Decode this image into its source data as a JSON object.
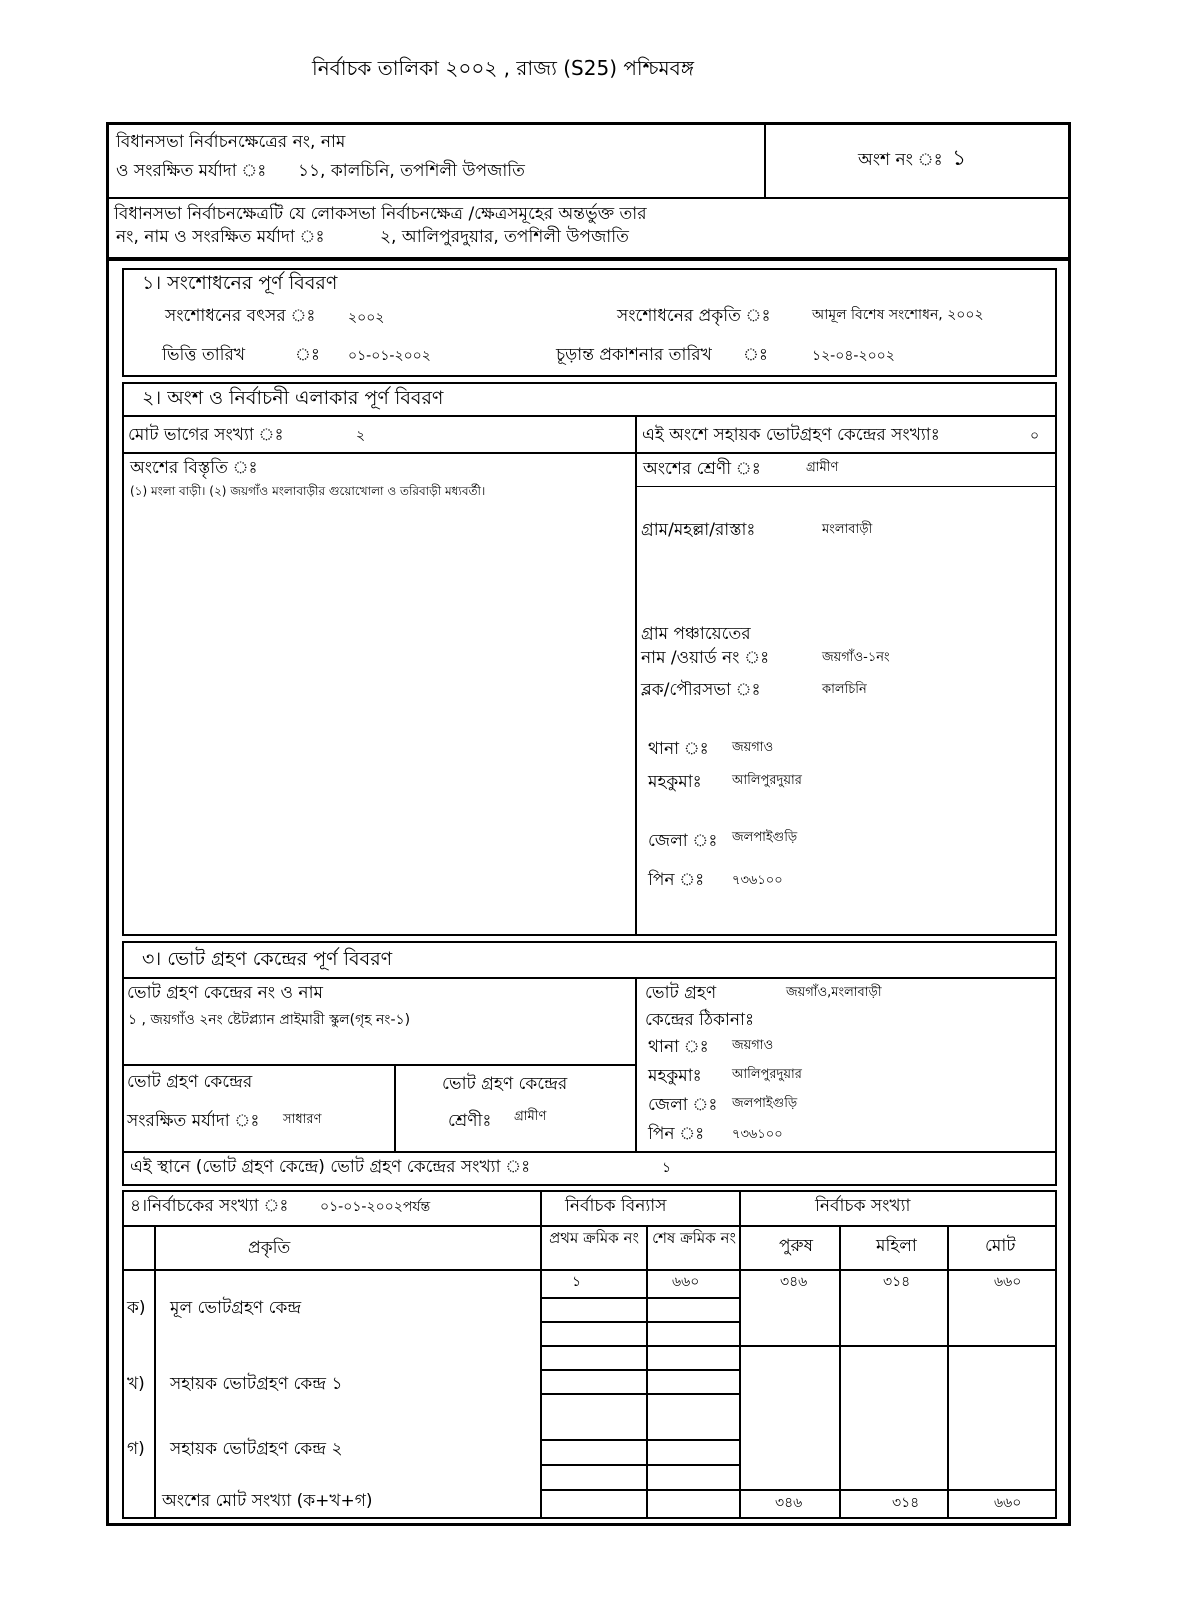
{
  "title": "নির্বাচক তালিকা   ২০০২ , রাজ্য (S25) পশ্চিমবঙ্গ",
  "header": {
    "assembly_label_1": "বিধানসভা নির্বাচনক্ষেত্রের নং, নাম",
    "assembly_label_2": "ও সংরক্ষিত মর্যাদা ঃ",
    "assembly_value": "১১, কালচিনি, তপশিলী উপজাতি",
    "part_label": "অংশ নং ঃ",
    "part_value": "১",
    "parliament_label_1": "বিধানসভা নির্বাচনক্ষেত্রটি যে লোকসভা নির্বাচনক্ষেত্র /ক্ষেত্রসমূহের অন্তর্ভুক্ত তার",
    "parliament_label_2": "নং, নাম ও সংরক্ষিত মর্যাদা ঃ",
    "parliament_value": "২, আলিপুরদুয়ার, তপশিলী উপজাতি"
  },
  "section1": {
    "heading": "১। সংশোধনের পূর্ণ বিবরণ",
    "year_label": "সংশোধনের বৎসর ঃ",
    "year_value": "২০০২",
    "nature_label": "সংশোধনের প্রকৃতি ঃ",
    "nature_value": "আমূল বিশেষ সংশোধন, ২০০২",
    "qual_date_label": "ভিত্তি তারিখ",
    "qual_date_sep": "ঃ",
    "qual_date_value": "০১-০১-২০০২",
    "pub_date_label": "চূড়ান্ত প্রকাশনার তারিখ",
    "pub_date_sep": "ঃ",
    "pub_date_value": "১২-০৪-২০০২"
  },
  "section2": {
    "heading": "২। অংশ ও নির্বাচনী এলাকার পূর্ণ বিবরণ",
    "sections_label": "মোট ভাগের সংখ্যা ঃ",
    "sections_value": "২",
    "aux_label": "এই অংশে সহায়ক ভোটগ্রহণ কেন্দ্রের সংখ্যাঃ",
    "aux_value": "০",
    "extent_label": "অংশের বিস্তৃতি ঃ",
    "extent_value": "(১) মংলা বাড়ী। (২) জয়গাঁও মংলাবাড়ীর গুয়োখোলা ও তরিবাড়ী মধ্যবর্তী।",
    "category_label": "অংশের শ্রেণী ঃ",
    "category_value": "গ্রামীণ",
    "village_label": "গ্রাম/মহল্লা/রাস্তাঃ",
    "village_value": "মংলাবাড়ী",
    "gp_label_1": "গ্রাম পঞ্চায়েতের",
    "gp_label_2": "নাম /ওয়ার্ড নং ঃ",
    "gp_value": "জয়গাঁও-১নং",
    "block_label": "ব্লক/পৌরসভা ঃ",
    "block_value": "কালচিনি",
    "ps_label": "থানা ঃ",
    "ps_value": "জয়গাও",
    "subdiv_label": "মহকুমাঃ",
    "subdiv_value": "আলিপুরদুয়ার",
    "district_label": "জেলা ঃ",
    "district_value": "জলপাইগুড়ি",
    "pin_label": "পিন ঃ",
    "pin_value": "৭৩৬১০০"
  },
  "section3": {
    "heading": "৩। ভোট গ্রহণ কেন্দ্রের পূর্ণ বিবরণ",
    "ps_no_label": "ভোট গ্রহণ কেন্দ্রের নং ও নাম",
    "ps_no_value": "১ , জয়গাঁও ২নং ষ্টেটপ্ল্যান প্রাইমারী স্কুল(গৃহ নং-১)",
    "addr_label_1": "ভোট গ্রহণ",
    "addr_label_2": "কেন্দ্রের ঠিকানাঃ",
    "addr_value": "জয়গাঁও,মংলাবাড়ী",
    "thana_label": "থানা ঃ",
    "thana_value": "জয়গাও",
    "subdiv_label": "মহকুমাঃ",
    "subdiv_value": "আলিপুরদুয়ার",
    "district_label": "জেলা ঃ",
    "district_value": "জলপাইগুড়ি",
    "pin_label": "পিন ঃ",
    "pin_value": "৭৩৬১০০",
    "reserved_label_1": "ভোট গ্রহণ কেন্দ্রের",
    "reserved_label_2": "সংরক্ষিত মর্যাদা ঃ",
    "reserved_value": "সাধারণ",
    "type_label_1": "ভোট গ্রহণ কেন্দ্রের",
    "type_label_2": "শ্রেণীঃ",
    "type_value": "গ্রামীণ",
    "count_label": "এই স্থানে (ভোট গ্রহণ কেন্দ্রে) ভোট গ্রহণ কেন্দ্রের সংখ্যা ঃ",
    "count_value": "১"
  },
  "section4": {
    "heading": "৪।নির্বাচকের সংখ্যা ঃ",
    "as_on": "০১-০১-২০০২পর্যন্ত",
    "composition": "নির্বাচক বিন্যাস",
    "electors": "নির্বাচক সংখ্যা",
    "columns": [
      "প্রকৃতি",
      "প্রথম ক্রমিক নং",
      "শেষ ক্রমিক নং",
      "পুরুষ",
      "মহিলা",
      "মোট"
    ],
    "rows": [
      {
        "mark": "ক)",
        "label": "মূল ভোটগ্রহণ কেন্দ্র",
        "first": "১",
        "last": "৬৬০",
        "male": "৩৪৬",
        "female": "৩১৪",
        "total": "৬৬০"
      },
      {
        "mark": "খ)",
        "label": "সহায়ক ভোটগ্রহণ কেন্দ্র ১"
      },
      {
        "mark": "গ)",
        "label": "সহায়ক ভোটগ্রহণ কেন্দ্র ২"
      }
    ],
    "total_label": "অংশের মোট সংখ্যা (ক+খ+গ)",
    "total_male": "৩৪৬",
    "total_female": "৩১৪",
    "total_total": "৬৬০"
  }
}
